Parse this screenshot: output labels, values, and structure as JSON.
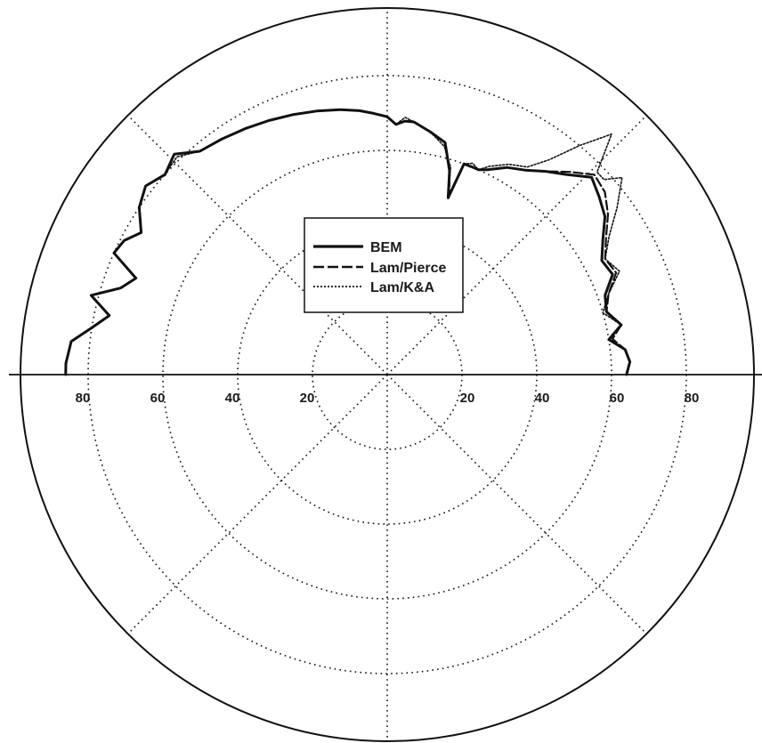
{
  "chart_data": {
    "type": "polar_line",
    "title": "",
    "angle_unit": "degrees",
    "angle_convention": "0 = right, counter-clockwise",
    "r_lim": [
      0,
      100
    ],
    "r_grid": [
      20,
      40,
      60,
      80,
      100
    ],
    "r_tick_labels": [
      "20",
      "40",
      "60",
      "80"
    ],
    "angle_grid_deg": [
      0,
      45,
      90,
      135,
      180,
      225,
      270,
      315
    ],
    "grid": true,
    "legend_position": "center",
    "series": [
      {
        "name": "BEM",
        "style": "solid",
        "points": [
          [
            0,
            64
          ],
          [
            3,
            65
          ],
          [
            6,
            64
          ],
          [
            9,
            60
          ],
          [
            12,
            64
          ],
          [
            16,
            61
          ],
          [
            20,
            62
          ],
          [
            24,
            66
          ],
          [
            28,
            65
          ],
          [
            32,
            68
          ],
          [
            36,
            72
          ],
          [
            40,
            74
          ],
          [
            44,
            76
          ],
          [
            48,
            72
          ],
          [
            52,
            69
          ],
          [
            56,
            66
          ],
          [
            60,
            64
          ],
          [
            64,
            61
          ],
          [
            66,
            60
          ],
          [
            68,
            60
          ],
          [
            70,
            60
          ],
          [
            71,
            50
          ],
          [
            73,
            57
          ],
          [
            76,
            64
          ],
          [
            80,
            66
          ],
          [
            84,
            68
          ],
          [
            86,
            68
          ],
          [
            88,
            67
          ],
          [
            90,
            69
          ],
          [
            93,
            70
          ],
          [
            96,
            71
          ],
          [
            100,
            72
          ],
          [
            105,
            73
          ],
          [
            110,
            74
          ],
          [
            115,
            75
          ],
          [
            120,
            76
          ],
          [
            125,
            77
          ],
          [
            130,
            78
          ],
          [
            134,
            82
          ],
          [
            138,
            80
          ],
          [
            142,
            82
          ],
          [
            146,
            80
          ],
          [
            150,
            76
          ],
          [
            153,
            79
          ],
          [
            156,
            80
          ],
          [
            159,
            72
          ],
          [
            162,
            75
          ],
          [
            165,
            82
          ],
          [
            168,
            76
          ],
          [
            171,
            80
          ],
          [
            174,
            85
          ],
          [
            178,
            86
          ],
          [
            180,
            86
          ]
        ]
      },
      {
        "name": "Lam/Pierce",
        "style": "dashed",
        "points": [
          [
            0,
            64
          ],
          [
            3,
            65
          ],
          [
            6,
            64
          ],
          [
            9,
            61
          ],
          [
            12,
            64
          ],
          [
            16,
            61
          ],
          [
            20,
            63
          ],
          [
            24,
            67
          ],
          [
            28,
            66
          ],
          [
            32,
            69
          ],
          [
            36,
            73
          ],
          [
            40,
            76
          ],
          [
            44,
            77
          ],
          [
            48,
            73
          ],
          [
            52,
            69
          ],
          [
            56,
            66
          ],
          [
            60,
            64
          ],
          [
            64,
            61
          ],
          [
            66,
            60
          ],
          [
            68,
            60
          ],
          [
            70,
            60
          ],
          [
            71,
            51
          ],
          [
            73,
            57
          ],
          [
            76,
            64
          ],
          [
            80,
            66
          ],
          [
            84,
            68
          ],
          [
            86,
            68
          ],
          [
            88,
            67
          ],
          [
            90,
            69
          ],
          [
            93,
            70
          ],
          [
            96,
            71
          ],
          [
            100,
            72
          ],
          [
            105,
            73
          ],
          [
            110,
            74
          ],
          [
            115,
            75
          ],
          [
            120,
            76
          ],
          [
            125,
            77
          ],
          [
            130,
            78
          ],
          [
            134,
            82
          ],
          [
            138,
            80
          ],
          [
            142,
            82
          ],
          [
            146,
            80
          ],
          [
            150,
            76
          ],
          [
            153,
            79
          ],
          [
            156,
            80
          ],
          [
            159,
            72
          ],
          [
            162,
            75
          ],
          [
            165,
            82
          ],
          [
            168,
            76
          ],
          [
            171,
            80
          ],
          [
            174,
            85
          ],
          [
            178,
            86
          ],
          [
            180,
            86
          ]
        ]
      },
      {
        "name": "Lam/K&A",
        "style": "dotted",
        "points": [
          [
            0,
            64
          ],
          [
            3,
            65
          ],
          [
            6,
            64
          ],
          [
            9,
            60
          ],
          [
            12,
            64
          ],
          [
            16,
            60
          ],
          [
            20,
            63
          ],
          [
            24,
            68
          ],
          [
            28,
            66
          ],
          [
            32,
            70
          ],
          [
            36,
            76
          ],
          [
            40,
            82
          ],
          [
            42,
            78
          ],
          [
            44,
            78
          ],
          [
            47,
            88
          ],
          [
            50,
            80
          ],
          [
            53,
            72
          ],
          [
            56,
            67
          ],
          [
            60,
            65
          ],
          [
            64,
            62
          ],
          [
            66,
            60
          ],
          [
            68,
            61
          ],
          [
            70,
            60
          ],
          [
            71,
            50
          ],
          [
            73,
            58
          ],
          [
            76,
            63
          ],
          [
            80,
            66
          ],
          [
            84,
            68
          ],
          [
            86,
            69
          ],
          [
            88,
            67
          ],
          [
            90,
            69
          ],
          [
            93,
            70
          ],
          [
            96,
            71
          ],
          [
            100,
            72
          ],
          [
            105,
            73
          ],
          [
            110,
            74
          ],
          [
            115,
            75
          ],
          [
            120,
            76
          ],
          [
            125,
            77
          ],
          [
            130,
            78
          ],
          [
            134,
            81
          ],
          [
            138,
            80
          ],
          [
            142,
            82
          ],
          [
            146,
            80
          ],
          [
            150,
            76
          ],
          [
            153,
            79
          ],
          [
            156,
            80
          ],
          [
            159,
            72
          ],
          [
            162,
            75
          ],
          [
            165,
            82
          ],
          [
            168,
            76
          ],
          [
            171,
            80
          ],
          [
            174,
            85
          ],
          [
            178,
            86
          ],
          [
            180,
            86
          ]
        ]
      }
    ]
  }
}
